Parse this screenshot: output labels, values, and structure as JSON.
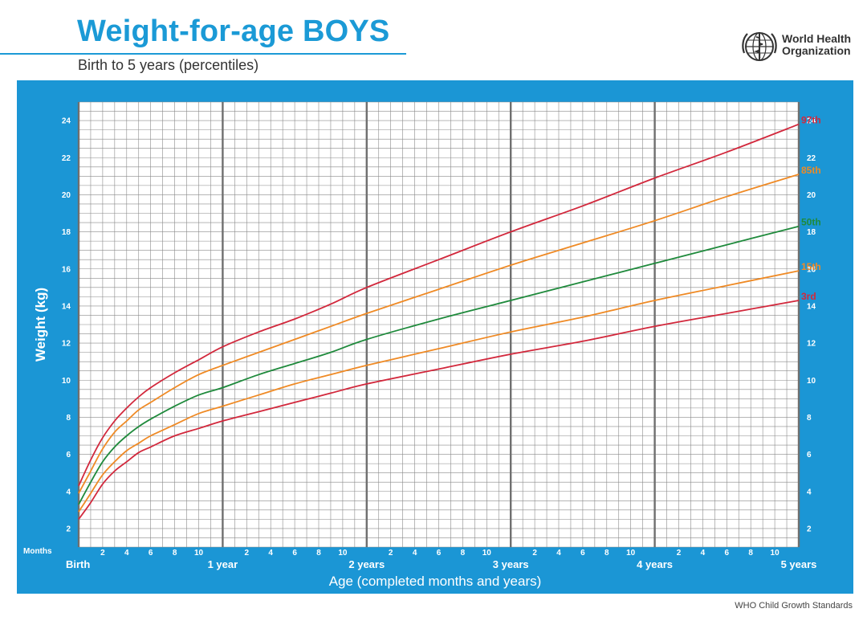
{
  "header": {
    "title": "Weight-for-age BOYS",
    "subtitle": "Birth to 5 years (percentiles)"
  },
  "logo": {
    "icon": "who-emblem-icon",
    "line1": "World Health",
    "line2": "Organization"
  },
  "footer": {
    "text": "WHO Child Growth Standards"
  },
  "colors": {
    "panel": "#1b96d5",
    "grid": "#8a8a8a",
    "grid_major": "#6f6f6f",
    "p3": "#d2283c",
    "p15": "#ef8a25",
    "p50": "#1f8a3c",
    "p85": "#ef8a25",
    "p97": "#d2283c"
  },
  "chart_data": {
    "type": "line",
    "title": "Weight-for-age BOYS",
    "subtitle": "Birth to 5 years (percentiles)",
    "xlabel": "Age (completed months and years)",
    "ylabel": "Weight (kg)",
    "x_unit_label": "Months",
    "xlim": [
      0,
      60
    ],
    "ylim": [
      1,
      25
    ],
    "y_ticks": [
      2,
      4,
      6,
      8,
      10,
      12,
      14,
      16,
      18,
      20,
      22,
      24
    ],
    "month_tick_labels": [
      "2",
      "4",
      "6",
      "8",
      "10"
    ],
    "year_labels": [
      {
        "x": 0,
        "label": "Birth"
      },
      {
        "x": 12,
        "label": "1 year"
      },
      {
        "x": 24,
        "label": "2 years"
      },
      {
        "x": 36,
        "label": "3 years"
      },
      {
        "x": 48,
        "label": "4 years"
      },
      {
        "x": 60,
        "label": "5 years"
      }
    ],
    "grid": true,
    "x": [
      0,
      1,
      2,
      3,
      4,
      5,
      6,
      8,
      10,
      12,
      15,
      18,
      21,
      24,
      30,
      36,
      42,
      48,
      54,
      60
    ],
    "series": [
      {
        "name": "3rd",
        "color": "#d2283c",
        "values": [
          2.5,
          3.4,
          4.4,
          5.1,
          5.6,
          6.1,
          6.4,
          7.0,
          7.4,
          7.8,
          8.3,
          8.8,
          9.3,
          9.8,
          10.6,
          11.4,
          12.1,
          12.9,
          13.6,
          14.3
        ]
      },
      {
        "name": "15th",
        "color": "#ef8a25",
        "values": [
          2.9,
          3.9,
          4.9,
          5.6,
          6.2,
          6.6,
          7.0,
          7.6,
          8.2,
          8.6,
          9.2,
          9.8,
          10.3,
          10.8,
          11.7,
          12.6,
          13.4,
          14.3,
          15.1,
          15.9
        ]
      },
      {
        "name": "50th",
        "color": "#1f8a3c",
        "values": [
          3.3,
          4.5,
          5.6,
          6.4,
          7.0,
          7.5,
          7.9,
          8.6,
          9.2,
          9.6,
          10.3,
          10.9,
          11.5,
          12.2,
          13.3,
          14.3,
          15.3,
          16.3,
          17.3,
          18.3
        ]
      },
      {
        "name": "85th",
        "color": "#ef8a25",
        "values": [
          3.9,
          5.1,
          6.3,
          7.2,
          7.8,
          8.4,
          8.8,
          9.6,
          10.3,
          10.8,
          11.5,
          12.2,
          12.9,
          13.6,
          14.9,
          16.2,
          17.4,
          18.6,
          19.9,
          21.1
        ]
      },
      {
        "name": "97th",
        "color": "#d2283c",
        "values": [
          4.3,
          5.7,
          6.9,
          7.8,
          8.5,
          9.1,
          9.6,
          10.4,
          11.1,
          11.8,
          12.6,
          13.3,
          14.1,
          15.0,
          16.5,
          18.0,
          19.4,
          20.9,
          22.3,
          23.8
        ]
      }
    ]
  }
}
